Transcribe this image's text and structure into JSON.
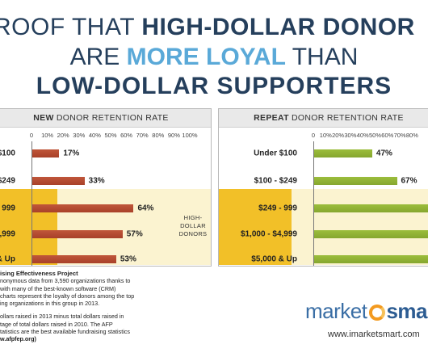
{
  "title": {
    "line1_pre": "ROOF THAT ",
    "line1_bold": "HIGH-DOLLAR DONOR",
    "line2_pre": "ARE ",
    "line2_hl": "MORE LOYAL",
    "line2_post": " THAN",
    "line3": "LOW-DOLLAR SUPPORTERS"
  },
  "colors": {
    "title": "#253f5c",
    "highlight": "#5aa9d8",
    "new_bar": "#c0563a",
    "repeat_bar": "#9bbd3c",
    "high_dollar_band": "#fbf3d0",
    "high_dollar_stub": "#f2c028"
  },
  "high_dollar_label": "HIGH-\nDOLLAR\nDONORS",
  "chart_data": [
    {
      "type": "bar",
      "orientation": "horizontal",
      "title_bold": "NEW",
      "title_rest": " DONOR RETENTION RATE",
      "xlim": [
        0,
        100
      ],
      "ticks": [
        "0",
        "10%",
        "20%",
        "30%",
        "40%",
        "50%",
        "60%",
        "70%",
        "80%",
        "90%",
        "100%"
      ],
      "categories": [
        "$100",
        "$249",
        "- 999",
        "4,999",
        "& Up"
      ],
      "values": [
        17,
        33,
        64,
        57,
        53
      ],
      "value_labels": [
        "17%",
        "33%",
        "64%",
        "57%",
        "53%"
      ]
    },
    {
      "type": "bar",
      "orientation": "horizontal",
      "title_bold": "REPEAT",
      "title_rest": " DONOR RETENTION RATE",
      "xlim": [
        0,
        100
      ],
      "ticks": [
        "0",
        "10%",
        "20%",
        "30%",
        "40%",
        "50%",
        "60%",
        "70%",
        "80%"
      ],
      "categories": [
        "Under $100",
        "$100 - $249",
        "$249 - 999",
        "$1,000 - $4,999",
        "$5,000 & Up"
      ],
      "values": [
        47,
        67,
        95,
        95,
        95
      ],
      "value_labels": [
        "47%",
        "67%",
        "",
        "",
        ""
      ]
    }
  ],
  "source": {
    "title": "ising Effectiveness Project",
    "lines1": [
      "nonymous data from 3,590 organizations thanks to",
      "with many of the best-known software (CRM)",
      "charts represent the loyalty of donors among the top",
      "ing organizations in this group in 2013."
    ],
    "lines2": [
      "ollars raised in 2013 minus total dollars raised in",
      "tage of total dollars raised in 2010. The AFP",
      "tatistics are the best available fundraising statistics"
    ],
    "url": "w.afpfep.org)"
  },
  "logo": {
    "market": "market",
    "smart": "sma"
  },
  "site": "www.imarketsmart.com"
}
